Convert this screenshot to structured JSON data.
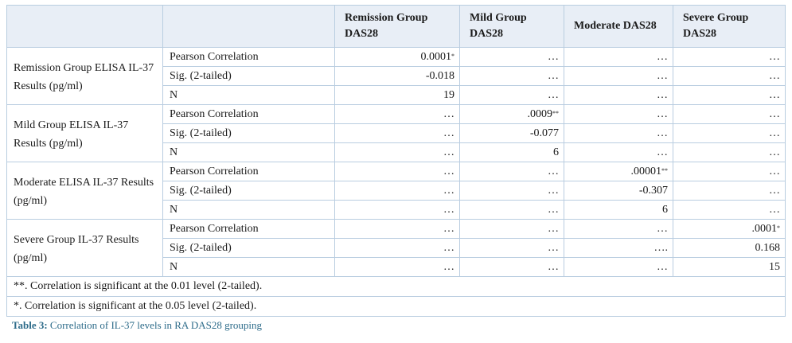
{
  "headers": [
    "",
    "",
    "Remission Group DAS28",
    "Mild Group DAS28",
    "Moderate DAS28",
    "Severe Group DAS28"
  ],
  "groups": [
    {
      "label": "Remission Group ELISA IL-37 Results (pg/ml)",
      "rows": [
        {
          "stat": "Pearson Correlation",
          "cells": [
            [
              "0.0001",
              "*"
            ],
            [
              "…",
              ""
            ],
            [
              "…",
              ""
            ],
            [
              "…",
              ""
            ]
          ]
        },
        {
          "stat": "Sig. (2-tailed)",
          "cells": [
            [
              "-0.018",
              ""
            ],
            [
              "…",
              ""
            ],
            [
              "…",
              ""
            ],
            [
              "…",
              ""
            ]
          ]
        },
        {
          "stat": "N",
          "cells": [
            [
              "19",
              ""
            ],
            [
              "…",
              ""
            ],
            [
              "…",
              ""
            ],
            [
              "…",
              ""
            ]
          ]
        }
      ]
    },
    {
      "label": "Mild Group ELISA IL-37 Results (pg/ml)",
      "rows": [
        {
          "stat": "Pearson Correlation",
          "cells": [
            [
              "…",
              ""
            ],
            [
              ".0009",
              "**"
            ],
            [
              "…",
              ""
            ],
            [
              "…",
              ""
            ]
          ]
        },
        {
          "stat": "Sig. (2-tailed)",
          "cells": [
            [
              "…",
              ""
            ],
            [
              "-0.077",
              ""
            ],
            [
              "…",
              ""
            ],
            [
              "…",
              ""
            ]
          ]
        },
        {
          "stat": "N",
          "cells": [
            [
              "…",
              ""
            ],
            [
              "6",
              ""
            ],
            [
              "…",
              ""
            ],
            [
              "…",
              ""
            ]
          ]
        }
      ]
    },
    {
      "label": "Moderate ELISA IL-37 Results (pg/ml)",
      "rows": [
        {
          "stat": "Pearson Correlation",
          "cells": [
            [
              "…",
              ""
            ],
            [
              "…",
              ""
            ],
            [
              ".00001",
              "**"
            ],
            [
              "…",
              ""
            ]
          ]
        },
        {
          "stat": "Sig. (2-tailed)",
          "cells": [
            [
              "…",
              ""
            ],
            [
              "…",
              ""
            ],
            [
              "-0.307",
              ""
            ],
            [
              "…",
              ""
            ]
          ]
        },
        {
          "stat": "N",
          "cells": [
            [
              "…",
              ""
            ],
            [
              "…",
              ""
            ],
            [
              "6",
              ""
            ],
            [
              "…",
              ""
            ]
          ]
        }
      ]
    },
    {
      "label": "Severe Group IL-37 Results (pg/ml)",
      "rows": [
        {
          "stat": "Pearson Correlation",
          "cells": [
            [
              "…",
              ""
            ],
            [
              "…",
              ""
            ],
            [
              "…",
              ""
            ],
            [
              ".0001",
              "*"
            ]
          ]
        },
        {
          "stat": "Sig. (2-tailed)",
          "cells": [
            [
              "…",
              ""
            ],
            [
              "…",
              ""
            ],
            [
              "….",
              ""
            ],
            [
              "0.168",
              ""
            ]
          ]
        },
        {
          "stat": "N",
          "cells": [
            [
              "…",
              ""
            ],
            [
              "…",
              ""
            ],
            [
              "…",
              ""
            ],
            [
              "15",
              ""
            ]
          ]
        }
      ]
    }
  ],
  "footnotes": [
    "**. Correlation is significant at the 0.01 level (2-tailed).",
    "*. Correlation is significant at the 0.05 level (2-tailed)."
  ],
  "caption": {
    "label": "Table 3:",
    "text": " Correlation of IL-37 levels in RA DAS28 grouping"
  }
}
